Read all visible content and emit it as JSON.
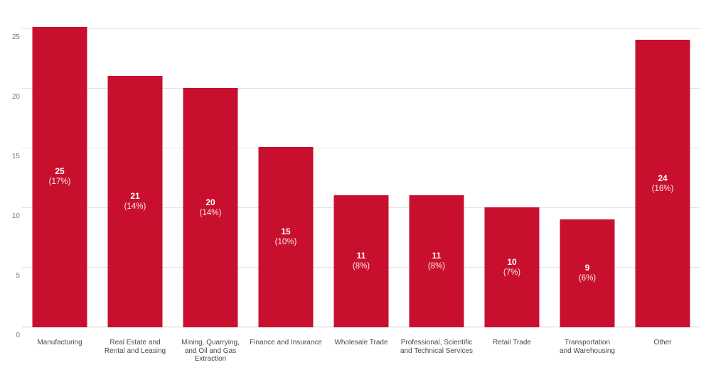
{
  "chart_data": {
    "type": "bar",
    "title": "",
    "xlabel": "",
    "ylabel": "",
    "categories": [
      [
        "Manufacturing"
      ],
      [
        "Real Estate and",
        "Rental and Leasing"
      ],
      [
        "Mining, Quarrying,",
        "and Oil and Gas Extraction"
      ],
      [
        "Finance and Insurance"
      ],
      [
        "Wholesale Trade"
      ],
      [
        "Professional, Scientific",
        "and Technical Services"
      ],
      [
        "Retail Trade"
      ],
      [
        "Transportation",
        "and Warehousing"
      ],
      [
        "Other"
      ]
    ],
    "values": [
      25,
      21,
      20,
      15,
      11,
      11,
      10,
      9,
      24
    ],
    "value_labels": [
      "25",
      "21",
      "20",
      "15",
      "11",
      "11",
      "10",
      "9",
      "24"
    ],
    "percent_labels": [
      "(17%)",
      "(14%)",
      "(14%)",
      "(10%)",
      "(8%)",
      "(8%)",
      "(7%)",
      "(6%)",
      "(16%)"
    ],
    "plotted_values": [
      25.2,
      21.1,
      20.05,
      15.1,
      11.1,
      11.1,
      10.05,
      9.05,
      24.1
    ],
    "y_ticks": [
      0,
      5,
      10,
      15,
      20,
      25
    ],
    "ylim": [
      0,
      25.3
    ],
    "grid": "horizontal-only",
    "legend_position": "none",
    "colors": {
      "bar": "#c8102e",
      "bar_value_text": "#ffffff",
      "gridline": "#e3e3e3",
      "axis_baseline": "#d0d0d0",
      "tick_text": "#7a7a7a",
      "category_text": "#4a4a4a",
      "background": "#ffffff"
    }
  }
}
